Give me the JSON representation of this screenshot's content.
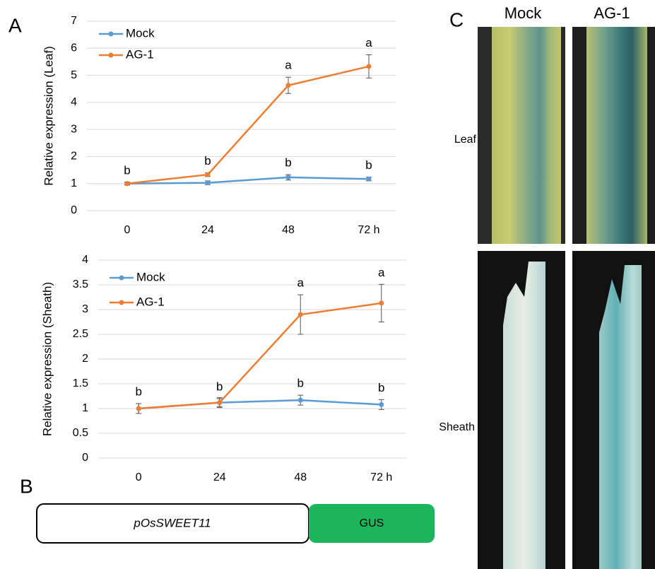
{
  "chart_data": [
    {
      "type": "line",
      "y_label": "Relative expression (Leaf)",
      "categories": [
        "0",
        "24",
        "48",
        "72 h"
      ],
      "ylim": [
        0,
        7
      ],
      "yticks": [
        0,
        1,
        2,
        3,
        4,
        5,
        6,
        7
      ],
      "grid": true,
      "series": [
        {
          "name": "Mock",
          "color": "#5b9bd5",
          "values": [
            1.0,
            1.03,
            1.23,
            1.17
          ],
          "errors": [
            0.05,
            0.07,
            0.1,
            0.07
          ],
          "labels": [
            "b",
            null,
            "b",
            "b"
          ]
        },
        {
          "name": "AG-1",
          "color": "#ed7d31",
          "values": [
            1.0,
            1.33,
            4.63,
            5.33
          ],
          "errors": [
            0.05,
            0.07,
            0.3,
            0.43
          ],
          "labels": [
            null,
            "b",
            "a",
            "a"
          ]
        }
      ]
    },
    {
      "type": "line",
      "y_label": "Relative expression (Sheath)",
      "categories": [
        "0",
        "24",
        "48",
        "72 h"
      ],
      "ylim": [
        0,
        4
      ],
      "yticks": [
        0,
        0.5,
        1,
        1.5,
        2,
        2.5,
        3,
        3.5,
        4
      ],
      "grid": true,
      "series": [
        {
          "name": "Mock",
          "color": "#5b9bd5",
          "values": [
            1.0,
            1.12,
            1.17,
            1.08
          ],
          "errors": [
            0.1,
            0.1,
            0.1,
            0.1
          ],
          "labels": [
            "b",
            null,
            "b",
            "b"
          ]
        },
        {
          "name": "AG-1",
          "color": "#ed7d31",
          "values": [
            1.0,
            1.12,
            2.9,
            3.13
          ],
          "errors": [
            0.1,
            0.08,
            0.4,
            0.38
          ],
          "labels": [
            null,
            "b",
            "a",
            "a"
          ]
        }
      ]
    }
  ],
  "panels": [
    "A",
    "B",
    "C"
  ],
  "construct": {
    "promoter": "pOsSWEET11",
    "reporter": "GUS"
  },
  "photos": {
    "columns": [
      "Mock",
      "AG-1"
    ],
    "rows": [
      "Leaf",
      "Sheath"
    ]
  }
}
